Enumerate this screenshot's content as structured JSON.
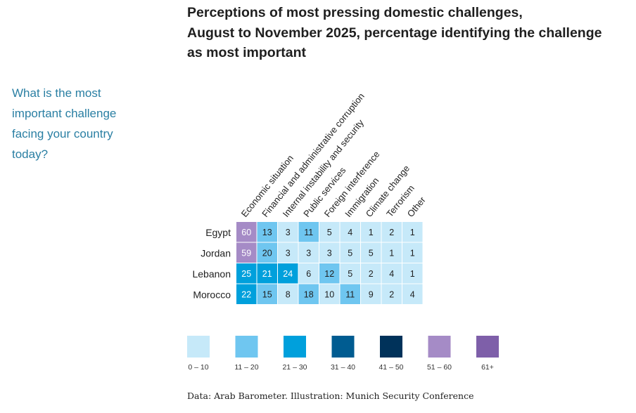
{
  "title_lines": [
    "Perceptions of most pressing domestic challenges,",
    "August to November 2025, percentage identifying the challenge",
    "as most important"
  ],
  "question_lines": [
    "What is the most",
    "important challenge",
    "facing your country",
    "today?"
  ],
  "source": "Data: Arab Barometer. Illustration: Munich Security Conference",
  "colors": {
    "title": "#1f1f1f",
    "question": "#2a7fa3",
    "cell_text_light": "#ffffff",
    "cell_text_dark": "#1f1f1f"
  },
  "chart_data": {
    "type": "heatmap",
    "title": "Perceptions of most pressing domestic challenges, August to November 2025, percentage identifying the challenge as most important",
    "rows": [
      "Egypt",
      "Jordan",
      "Lebanon",
      "Morocco"
    ],
    "columns": [
      "Economic situation",
      "Financial and administrative corruption",
      "Internal instability and security",
      "Public services",
      "Foreign interference",
      "Immigration",
      "Climate change",
      "Terrorism",
      "Other"
    ],
    "values": [
      [
        60,
        13,
        3,
        11,
        5,
        4,
        1,
        2,
        1
      ],
      [
        59,
        20,
        3,
        3,
        3,
        5,
        5,
        1,
        1
      ],
      [
        25,
        21,
        24,
        6,
        12,
        5,
        2,
        4,
        1
      ],
      [
        22,
        15,
        8,
        18,
        10,
        11,
        9,
        2,
        4
      ]
    ],
    "legend": [
      {
        "label": "0 – 10",
        "min": 0,
        "max": 10,
        "color": "#c6e9f9"
      },
      {
        "label": "11 – 20",
        "min": 11,
        "max": 20,
        "color": "#6fc6f0"
      },
      {
        "label": "21 – 30",
        "min": 21,
        "max": 30,
        "color": "#00a0dc"
      },
      {
        "label": "31 – 40",
        "min": 31,
        "max": 40,
        "color": "#005c91"
      },
      {
        "label": "41 – 50",
        "min": 41,
        "max": 50,
        "color": "#00325a"
      },
      {
        "label": "51 – 60",
        "min": 51,
        "max": 60,
        "color": "#a58bc6"
      },
      {
        "label": "61+",
        "min": 61,
        "max": 100,
        "color": "#7e5fa9"
      }
    ]
  }
}
